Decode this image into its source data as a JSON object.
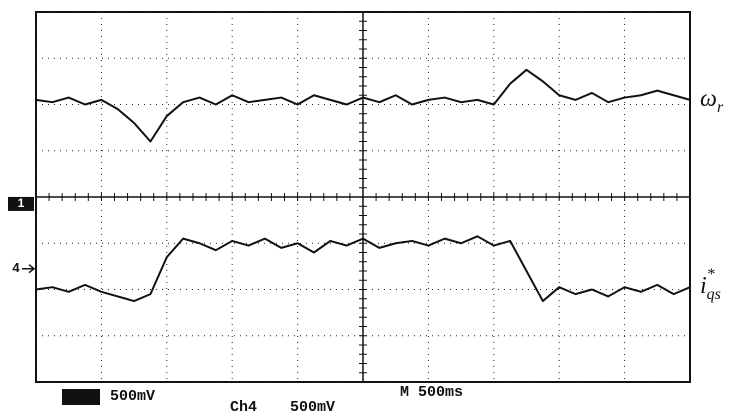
{
  "chart_data": {
    "type": "line",
    "x": [
      0,
      0.25,
      0.5,
      0.75,
      1,
      1.25,
      1.5,
      1.75,
      2,
      2.25,
      2.5,
      2.75,
      3,
      3.25,
      3.5,
      3.75,
      4,
      4.25,
      4.5,
      4.75,
      5,
      5.25,
      5.5,
      5.75,
      6,
      6.25,
      6.5,
      6.75,
      7,
      7.25,
      7.5,
      7.75,
      8,
      8.25,
      8.5,
      8.75,
      9,
      9.25,
      9.5,
      9.75,
      10
    ],
    "series": [
      {
        "name": "ω",
        "name_sub": "r",
        "color": "#111111",
        "values": [
          6.1,
          6.05,
          6.15,
          6.0,
          6.1,
          5.9,
          5.6,
          5.2,
          5.75,
          6.05,
          6.15,
          6.0,
          6.2,
          6.05,
          6.1,
          6.15,
          6.0,
          6.2,
          6.1,
          6.0,
          6.15,
          6.05,
          6.2,
          6.0,
          6.1,
          6.15,
          6.05,
          6.1,
          6.0,
          6.45,
          6.75,
          6.5,
          6.2,
          6.1,
          6.25,
          6.05,
          6.15,
          6.2,
          6.3,
          6.2,
          6.1
        ]
      },
      {
        "name": "i",
        "name_sub": "qs",
        "name_sup": "*",
        "color": "#111111",
        "values": [
          2.0,
          2.05,
          1.95,
          2.1,
          1.95,
          1.85,
          1.75,
          1.9,
          2.7,
          3.1,
          3.0,
          2.85,
          3.05,
          2.95,
          3.1,
          2.9,
          3.0,
          2.8,
          3.05,
          2.95,
          3.1,
          2.9,
          3.0,
          3.05,
          2.95,
          3.1,
          3.0,
          3.15,
          2.95,
          3.05,
          2.4,
          1.75,
          2.05,
          1.9,
          2.0,
          1.85,
          2.05,
          1.95,
          2.1,
          1.9,
          2.05
        ]
      }
    ],
    "xlim": [
      0,
      10
    ],
    "ylim": [
      0,
      8
    ],
    "xticks": [
      0,
      1,
      2,
      3,
      4,
      5,
      6,
      7,
      8,
      9,
      10
    ],
    "yticks": [
      0,
      1,
      2,
      3,
      4,
      5,
      6,
      7,
      8
    ],
    "grid": true,
    "markers": [
      {
        "label": "1",
        "value": 3.85
      },
      {
        "label": "4",
        "value": 2.45
      }
    ],
    "footer": [
      "500mV",
      "Ch4",
      "500mV",
      "M 500ms"
    ]
  }
}
